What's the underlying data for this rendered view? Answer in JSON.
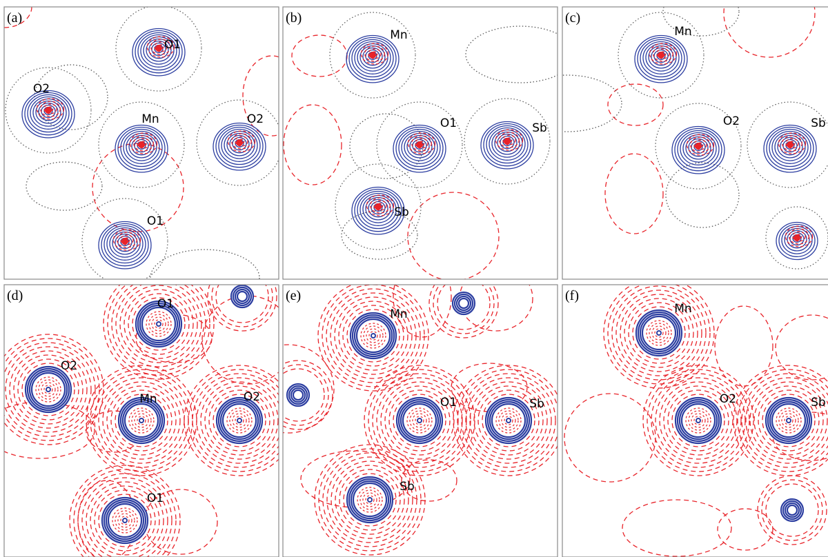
{
  "panels": [
    {
      "label": "(a)",
      "atoms": [
        "O1",
        "O2",
        "Mn",
        "O2",
        "O1"
      ]
    },
    {
      "label": "(b)",
      "atoms": [
        "Mn",
        "O1",
        "Sb",
        "Sb"
      ]
    },
    {
      "label": "(c)",
      "atoms": [
        "Mn",
        "O2",
        "Sb"
      ]
    },
    {
      "label": "(d)",
      "atoms": [
        "O1",
        "O2",
        "Mn",
        "O2",
        "O1"
      ]
    },
    {
      "label": "(e)",
      "atoms": [
        "Mn",
        "O1",
        "Sb",
        "Sb"
      ]
    },
    {
      "label": "(f)",
      "atoms": [
        "Mn",
        "O2",
        "Sb"
      ]
    }
  ]
}
